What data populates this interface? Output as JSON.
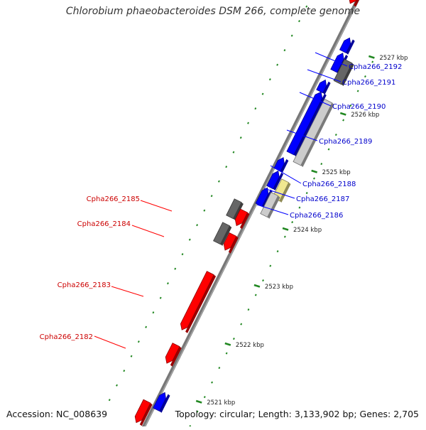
{
  "title": "Chlorobium phaeobacteroides DSM 266, complete genome",
  "footer": {
    "accession": "Accession: NC_008639",
    "topology": "Topology: circular; Length: 3,133,902 bp; Genes: 2,705"
  },
  "colors": {
    "backbone": "#777777",
    "forward_gene": "#0000ff",
    "reverse_gene": "#ff0000",
    "pseudo_gene_dark": "#666666",
    "pseudo_gene_light": "#cccccc",
    "rna_gene": "#f0e890",
    "label_forward": "#0000cc",
    "label_reverse": "#cc0000",
    "tick": "#228822"
  },
  "kbp_labels": [
    "2521 kbp",
    "2522 kbp",
    "2523 kbp",
    "2524 kbp",
    "2525 kbp",
    "2526 kbp",
    "2527 kbp"
  ],
  "gene_labels_forward": [
    "Cpha266_2192",
    "Cpha266_2191",
    "Cpha266_2190",
    "Cpha266_2189",
    "Cpha266_2188",
    "Cpha266_2187",
    "Cpha266_2186"
  ],
  "gene_labels_reverse": [
    "Cpha266_2185",
    "Cpha266_2184",
    "Cpha266_2183",
    "Cpha266_2182"
  ]
}
